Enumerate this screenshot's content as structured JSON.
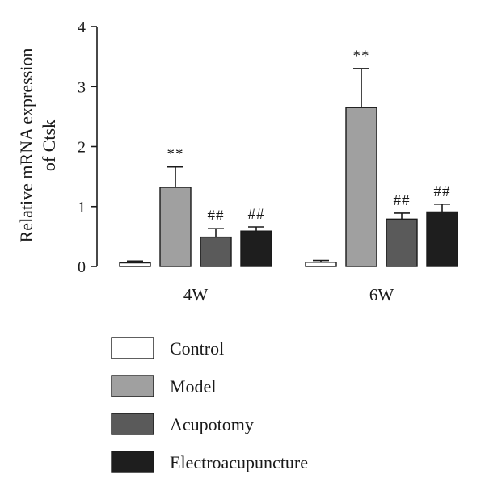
{
  "chart_data": {
    "type": "bar",
    "title": "",
    "ylabel_lines": [
      "Relative mRNA expression",
      "of Ctsk"
    ],
    "xlabel": "",
    "ylim": [
      0,
      4
    ],
    "yticks": [
      0,
      1,
      2,
      3,
      4
    ],
    "categories": [
      "4W",
      "6W"
    ],
    "series": [
      {
        "name": "Control",
        "color": "#ffffff",
        "values": [
          0.06,
          0.07
        ],
        "errors": [
          0.03,
          0.03
        ],
        "annotations": [
          "",
          ""
        ]
      },
      {
        "name": "Model",
        "color": "#a0a0a0",
        "values": [
          1.32,
          2.65
        ],
        "errors": [
          0.34,
          0.65
        ],
        "annotations": [
          "**",
          "**"
        ]
      },
      {
        "name": "Acupotomy",
        "color": "#5a5a5a",
        "values": [
          0.49,
          0.79
        ],
        "errors": [
          0.14,
          0.1
        ],
        "annotations": [
          "##",
          "##"
        ]
      },
      {
        "name": "Electroacupuncture",
        "color": "#1e1e1e",
        "values": [
          0.59,
          0.91
        ],
        "errors": [
          0.07,
          0.13
        ],
        "annotations": [
          "##",
          "##"
        ]
      }
    ],
    "legend_position": "bottom",
    "grid": false
  }
}
